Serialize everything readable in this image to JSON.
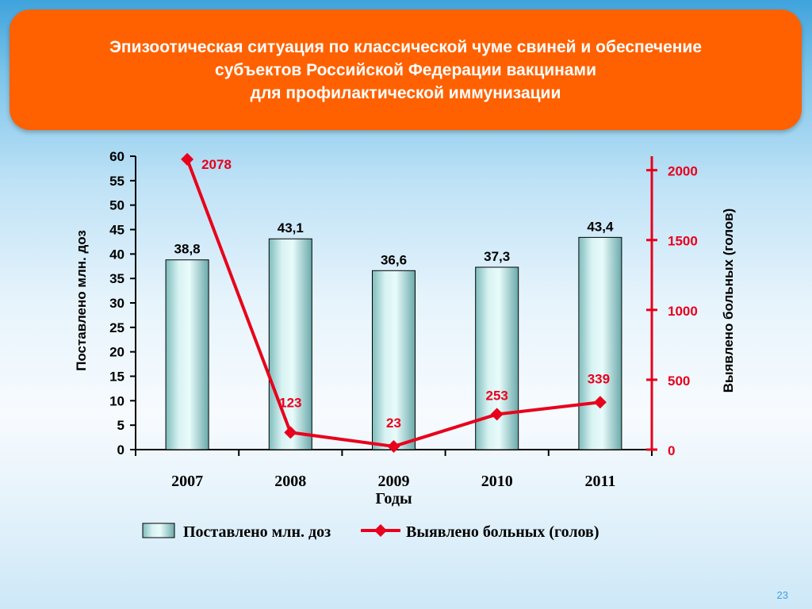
{
  "slide": {
    "title": "Эпизоотическая ситуация по классической чуме свиней и обеспечение\nсубъектов Российской Федерации вакцинами\nдля профилактической иммунизации",
    "page_number": "23"
  },
  "chart_data": {
    "type": "bar",
    "categories": [
      "2007",
      "2008",
      "2009",
      "2010",
      "2011"
    ],
    "xlabel": "Годы",
    "ylabel": "Поставлено млн. доз",
    "y2label": "Выявлено больных (голов)",
    "ylim": [
      0,
      60
    ],
    "y2lim": [
      0,
      2100
    ],
    "yticks": [
      0,
      5,
      10,
      15,
      20,
      25,
      30,
      35,
      40,
      45,
      50,
      55,
      60
    ],
    "y2ticks": [
      0,
      500,
      1000,
      1500,
      2000
    ],
    "series": [
      {
        "name": "Поставлено млн. доз",
        "type": "bar",
        "axis": "left",
        "values": [
          38.8,
          43.1,
          36.6,
          37.3,
          43.4
        ],
        "labels": [
          "38,8",
          "43,1",
          "36,6",
          "37,3",
          "43,4"
        ]
      },
      {
        "name": "Выявлено больных (голов)",
        "type": "line",
        "axis": "right",
        "color": "#e8001c",
        "values": [
          2078,
          123,
          23,
          253,
          339
        ],
        "labels": [
          "2078",
          "123",
          "23",
          "253",
          "339"
        ]
      }
    ],
    "legend": "bottom",
    "grid": false
  }
}
